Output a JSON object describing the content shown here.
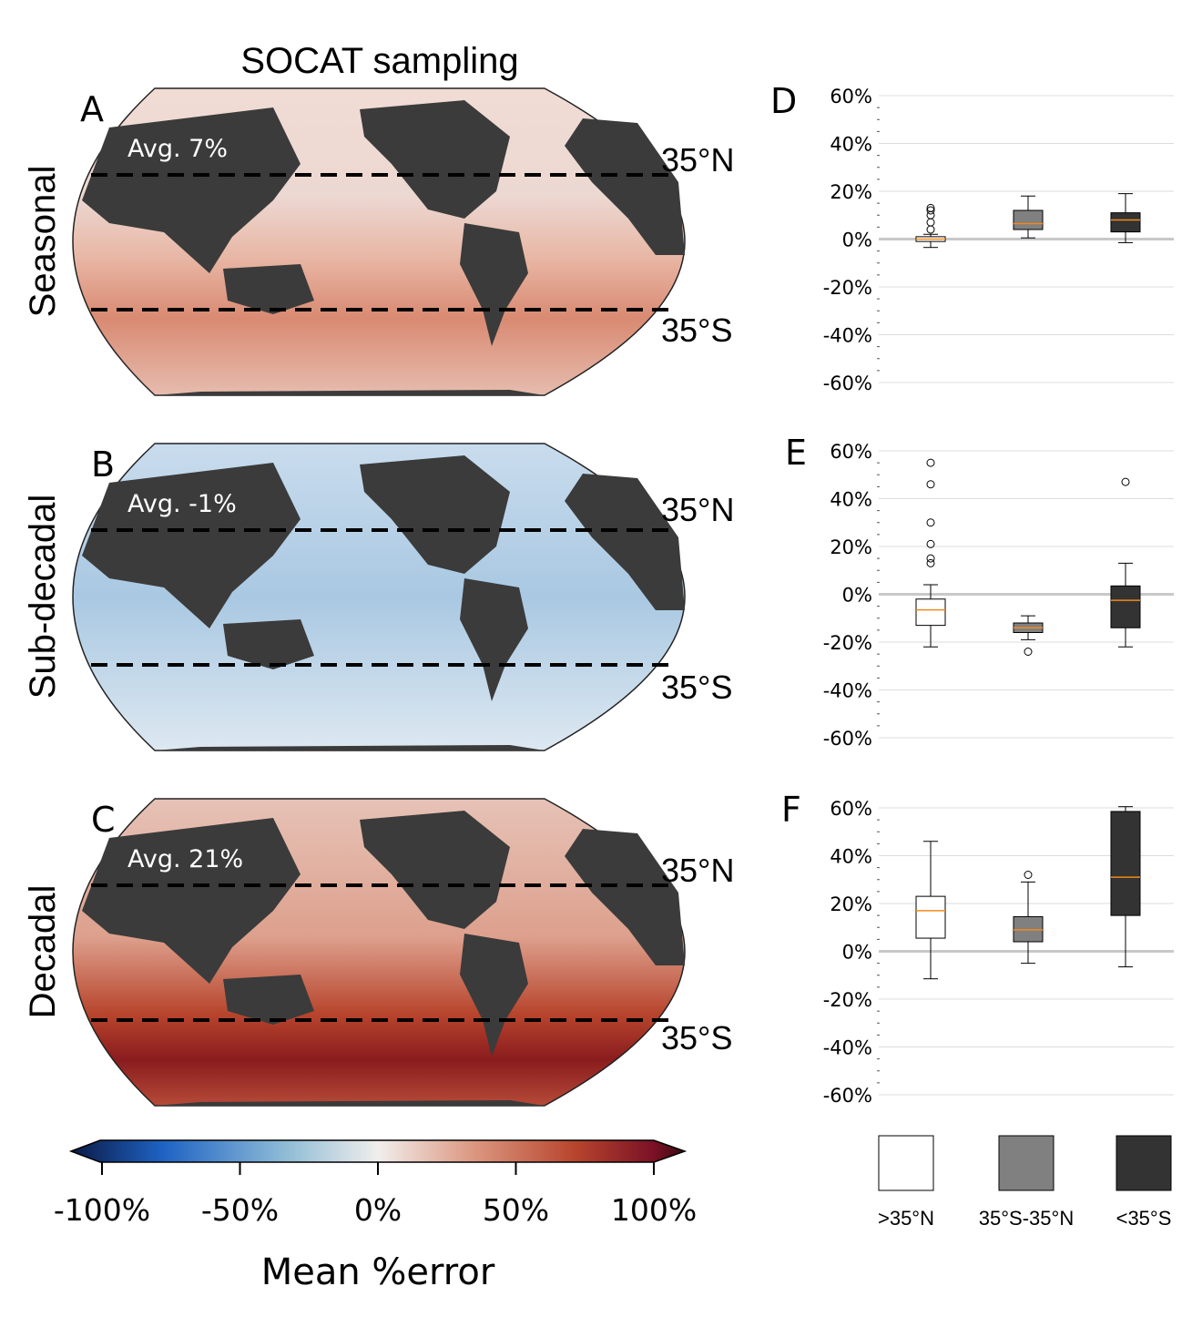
{
  "figure_title": "SOCAT sampling",
  "colors": {
    "land": "#3b3b3b",
    "median": "#f08a1c",
    "north": "#ffffff",
    "tropics": "#808080",
    "south": "#333333",
    "neg": "#1d5fa8",
    "pos": "#b03022"
  },
  "maps": [
    {
      "panel": "A",
      "row_label": "Seasonal",
      "avg_text": "Avg. 7%",
      "lat_north": "35°N",
      "lat_south": "35°S",
      "tone": "pos",
      "strength": 0.45
    },
    {
      "panel": "B",
      "row_label": "Sub-decadal",
      "avg_text": "Avg. -1%",
      "lat_north": "35°N",
      "lat_south": "35°S",
      "tone": "neg",
      "strength": 0.35
    },
    {
      "panel": "C",
      "row_label": "Decadal",
      "avg_text": "Avg. 21%",
      "lat_north": "35°N",
      "lat_south": "35°S",
      "tone": "pos",
      "strength": 0.7
    }
  ],
  "colorbar": {
    "label": "Mean %error",
    "ticks": [
      "-100%",
      "-50%",
      "0%",
      "50%",
      "100%"
    ],
    "stops": [
      "#0b1a45",
      "#1e63c4",
      "#8fbcd6",
      "#f1eeec",
      "#dd9a84",
      "#b8452d",
      "#7a1126",
      "#3a0a12"
    ]
  },
  "chart_data": [
    {
      "type": "box",
      "panel": "D",
      "categories": [
        ">35°N",
        "35°S-35°N",
        "<35°S"
      ],
      "ylim": [
        -60,
        60
      ],
      "yticks": [
        "60%",
        "40%",
        "20%",
        "0%",
        "-20%",
        "-40%",
        "-60%"
      ],
      "ytick_values": [
        60,
        40,
        20,
        0,
        -20,
        -40,
        -60
      ],
      "boxes": [
        {
          "whislo": -3.5,
          "q1": -1,
          "med": 0,
          "q3": 1,
          "whishi": 2,
          "fliers": [
            4,
            7,
            10,
            12,
            13
          ]
        },
        {
          "whislo": 0.5,
          "q1": 4,
          "med": 6.5,
          "q3": 12,
          "whishi": 18
        },
        {
          "whislo": -1.5,
          "q1": 3,
          "med": 8,
          "q3": 11,
          "whishi": 19
        }
      ]
    },
    {
      "type": "box",
      "panel": "E",
      "categories": [
        ">35°N",
        "35°S-35°N",
        "<35°S"
      ],
      "ylim": [
        -60,
        60
      ],
      "yticks": [
        "60%",
        "40%",
        "20%",
        "0%",
        "-20%",
        "-40%",
        "-60%"
      ],
      "ytick_values": [
        60,
        40,
        20,
        0,
        -20,
        -40,
        -60
      ],
      "boxes": [
        {
          "whislo": -22,
          "q1": -13,
          "med": -6.5,
          "q3": -2,
          "whishi": 4,
          "fliers": [
            13,
            15,
            21,
            30,
            46,
            55
          ]
        },
        {
          "whislo": -19,
          "q1": -16,
          "med": -14,
          "q3": -12,
          "whishi": -9,
          "fliers": [
            -24
          ]
        },
        {
          "whislo": -22,
          "q1": -14,
          "med": -2.5,
          "q3": 3.5,
          "whishi": 13,
          "fliers": [
            47
          ]
        }
      ]
    },
    {
      "type": "box",
      "panel": "F",
      "categories": [
        ">35°N",
        "35°S-35°N",
        "<35°S"
      ],
      "ylim": [
        -60,
        60
      ],
      "yticks": [
        "60%",
        "40%",
        "20%",
        "0%",
        "-20%",
        "-40%",
        "-60%"
      ],
      "ytick_values": [
        60,
        40,
        20,
        0,
        -20,
        -40,
        -60
      ],
      "boxes": [
        {
          "whislo": -11.5,
          "q1": 5.5,
          "med": 17,
          "q3": 23,
          "whishi": 46
        },
        {
          "whislo": -5,
          "q1": 4,
          "med": 9,
          "q3": 14.5,
          "whishi": 29,
          "fliers": [
            32
          ]
        },
        {
          "whislo": -6.5,
          "q1": 15,
          "med": 31,
          "q3": 58.5,
          "whishi": 60.5
        }
      ]
    }
  ],
  "legend": [
    {
      "label": ">35°N",
      "color_key": "north"
    },
    {
      "label": "35°S-35°N",
      "color_key": "tropics"
    },
    {
      "label": "<35°S",
      "color_key": "south"
    }
  ]
}
